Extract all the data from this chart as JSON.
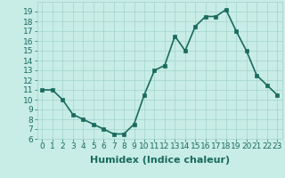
{
  "x": [
    0,
    1,
    2,
    3,
    4,
    5,
    6,
    7,
    8,
    9,
    10,
    11,
    12,
    13,
    14,
    15,
    16,
    17,
    18,
    19,
    20,
    21,
    22,
    23
  ],
  "y": [
    11,
    11,
    10,
    8.5,
    8,
    7.5,
    7,
    6.5,
    6.5,
    7.5,
    10.5,
    13,
    13.5,
    16.5,
    15,
    17.5,
    18.5,
    18.5,
    19.2,
    17,
    15,
    12.5,
    11.5,
    10.5
  ],
  "line_color": "#1a6b5e",
  "marker": "s",
  "marker_size": 2.2,
  "bg_color": "#c8ece6",
  "grid_color": "#a0d4cc",
  "xlabel": "Humidex (Indice chaleur)",
  "ylim": [
    6,
    20
  ],
  "xlim": [
    -0.5,
    23.5
  ],
  "yticks": [
    6,
    7,
    8,
    9,
    10,
    11,
    12,
    13,
    14,
    15,
    16,
    17,
    18,
    19
  ],
  "xticks": [
    0,
    1,
    2,
    3,
    4,
    5,
    6,
    7,
    8,
    9,
    10,
    11,
    12,
    13,
    14,
    15,
    16,
    17,
    18,
    19,
    20,
    21,
    22,
    23
  ],
  "linewidth": 1.2,
  "xlabel_fontsize": 8,
  "tick_fontsize": 6.5
}
